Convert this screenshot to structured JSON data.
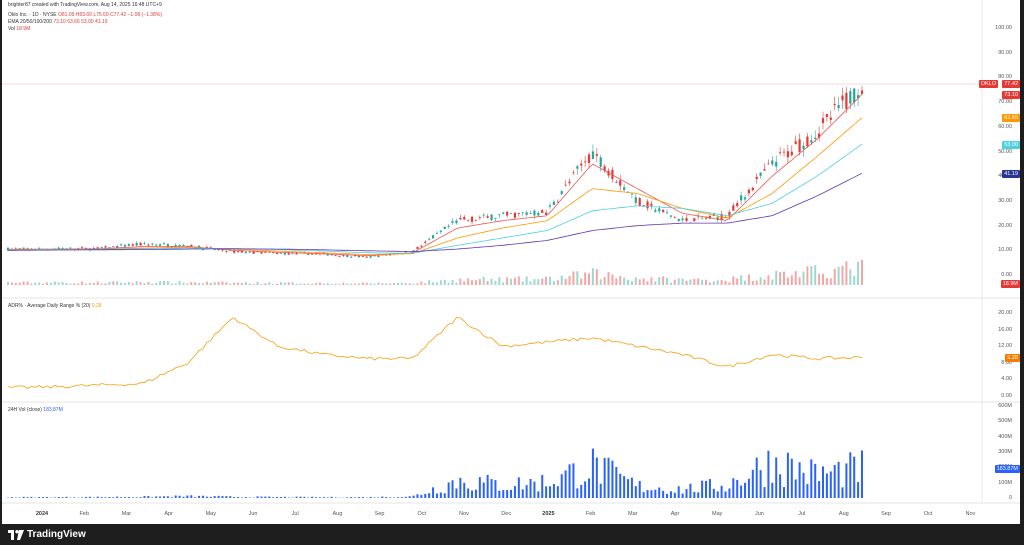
{
  "header": {
    "created_by": "brighter87 created with TradingView.com, Aug 14, 2025 16:48 UTC+9"
  },
  "legend": {
    "symbol_line": "Oklo Inc. · 1D · NYSE",
    "ohlc": "O81.09 H83.60 L75.60 C77.42 −1.08 (−1.38%)",
    "ema_line_label": "EMA 20/50/100/200",
    "ema_values": "73.10  63.66  53.00  41.19",
    "vol_label": "Vol",
    "vol_value": "18.9M"
  },
  "adrs_panel": {
    "title": "ADR% · Average Daily Range % (20)",
    "value": "9.28"
  },
  "vol24_panel": {
    "title": "24H Vol (close)",
    "value": "183.87M"
  },
  "price_tags": {
    "symbol": "OKLO",
    "last": "77.42",
    "ema20": "73.10",
    "ema50": "63.66",
    "ema100": "53.00",
    "ema200": "41.19",
    "vol": "18.9M",
    "adr": "9.28",
    "vol24": "183.87M"
  },
  "price_axis": [
    "100.00",
    "90.00",
    "80.00",
    "70.00",
    "60.00",
    "50.00",
    "40.00",
    "30.00",
    "20.00",
    "10.00",
    "0.00"
  ],
  "adr_axis": [
    "20.00",
    "16.00",
    "12.00",
    "8.00",
    "4.00",
    "0.00"
  ],
  "vol24_axis": [
    "600M",
    "500M",
    "400M",
    "300M",
    "200M",
    "100M",
    "0"
  ],
  "time_axis": [
    "2024",
    "Feb",
    "Mar",
    "Apr",
    "May",
    "Jun",
    "Jul",
    "Aug",
    "Sep",
    "Oct",
    "Nov",
    "Dec",
    "2025",
    "Feb",
    "Mar",
    "Apr",
    "May",
    "Jun",
    "Jul",
    "Aug",
    "Sep",
    "Oct",
    "Nov"
  ],
  "footer": {
    "brand": "TradingView"
  },
  "colors": {
    "up": "#26a69a",
    "down": "#e53935",
    "ema20": "#ef5350",
    "ema50": "#ff9800",
    "ema100": "#4dd0e1",
    "ema200": "#5e35b1",
    "adr_line": "#f59e0b",
    "vol24_bar": "#2962ff"
  },
  "chart_data": {
    "type": "line",
    "title": "Oklo Inc. · 1D · NYSE",
    "x": [
      "2024",
      "Feb",
      "Mar",
      "Apr",
      "May",
      "Jun",
      "Jul",
      "Aug",
      "Sep",
      "Oct",
      "Nov",
      "Dec",
      "2025",
      "Feb",
      "Mar",
      "Apr",
      "May",
      "Jun",
      "Jul",
      "Aug"
    ],
    "series": [
      {
        "name": "Close",
        "values": [
          10.5,
          10.6,
          10.7,
          12.5,
          11.8,
          9.5,
          8.8,
          8.5,
          7.2,
          9.5,
          22,
          24,
          25.5,
          50,
          30,
          22,
          24,
          45,
          58,
          77.42
        ]
      },
      {
        "name": "EMA 20",
        "values": [
          10.4,
          10.5,
          10.6,
          11.5,
          11.6,
          10.0,
          9.2,
          8.6,
          7.8,
          9.0,
          19,
          22,
          24,
          45,
          35,
          25,
          22,
          40,
          55,
          73.1
        ]
      },
      {
        "name": "EMA 50",
        "values": [
          10.3,
          10.4,
          10.5,
          10.9,
          11.2,
          10.5,
          9.7,
          9.0,
          8.3,
          8.6,
          15,
          19,
          22,
          35,
          33,
          27,
          23,
          33,
          48,
          63.66
        ]
      },
      {
        "name": "EMA 100",
        "values": [
          10.2,
          10.3,
          10.4,
          10.6,
          10.9,
          10.7,
          10.3,
          9.7,
          9.0,
          8.8,
          12,
          15,
          18,
          26,
          28,
          27,
          24,
          29,
          40,
          53.0
        ]
      },
      {
        "name": "EMA 200",
        "values": [
          10.0,
          10.1,
          10.2,
          10.3,
          10.5,
          10.6,
          10.5,
          10.2,
          9.8,
          9.5,
          10.5,
          12,
          14,
          18,
          20,
          21,
          21,
          24,
          32,
          41.19
        ]
      }
    ],
    "ylim": [
      0,
      100
    ]
  }
}
